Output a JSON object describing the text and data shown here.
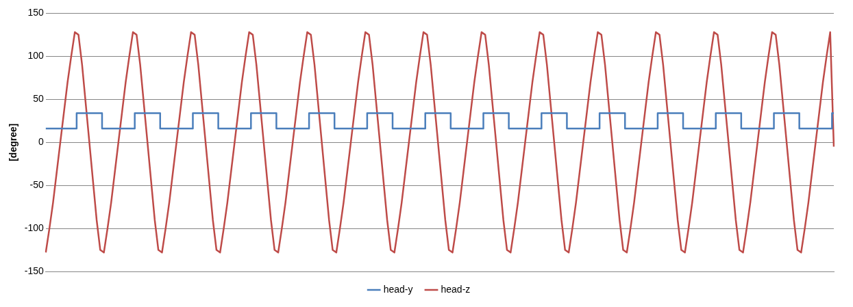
{
  "chart_data": {
    "type": "line",
    "ylabel": "[degree]",
    "ylim": [
      -150,
      150
    ],
    "yticks": [
      -150,
      -100,
      -50,
      0,
      50,
      100,
      150
    ],
    "grid": "y",
    "legend": "bottom",
    "categories": [
      null,
      null,
      null,
      null,
      null,
      null,
      null,
      null,
      null,
      null,
      null,
      null,
      null,
      null,
      null,
      null,
      null,
      null,
      null,
      null,
      null,
      null,
      null,
      null,
      null,
      null,
      null,
      null,
      null,
      null,
      null,
      null,
      null,
      null,
      null,
      null,
      null,
      null,
      null,
      null,
      null,
      null,
      null,
      null,
      null,
      null,
      null,
      null,
      null,
      null,
      null,
      null,
      null,
      null,
      null,
      null,
      null,
      null,
      null,
      null,
      null,
      null,
      null,
      null,
      null,
      null,
      null,
      null,
      null,
      null,
      null,
      null,
      null,
      null,
      null,
      null,
      null,
      null,
      null,
      null,
      null,
      null,
      null,
      null,
      null,
      null,
      null,
      null,
      null,
      null,
      null,
      null,
      null,
      null,
      null,
      null,
      null,
      null,
      null,
      null,
      null,
      null,
      null,
      null,
      null,
      null,
      null,
      null,
      null,
      null,
      null,
      null,
      null,
      null,
      null,
      null,
      null,
      null,
      null,
      null,
      null,
      null,
      null,
      null,
      null,
      null,
      null,
      null,
      null,
      null,
      null,
      null,
      null,
      null,
      null,
      null,
      null,
      null,
      null,
      null,
      null,
      null,
      null,
      null,
      null,
      null,
      null,
      null,
      null,
      null,
      null,
      null,
      null,
      null,
      null,
      null,
      null,
      null,
      null,
      null,
      null,
      null,
      null,
      null,
      null,
      null,
      null,
      null,
      null,
      null,
      null,
      null,
      null,
      null,
      null,
      null,
      null,
      null,
      null,
      null,
      null,
      null,
      null,
      null,
      null,
      null,
      null,
      null,
      null,
      null,
      null,
      null,
      null,
      null,
      null,
      null,
      null,
      null,
      null,
      null,
      null,
      null,
      null,
      null,
      null,
      null,
      null,
      null,
      null,
      null,
      null,
      null,
      null,
      null,
      null,
      null,
      null,
      null
    ],
    "series": [
      {
        "name": "head-y",
        "type": "step",
        "color": "#4a7ebb",
        "values": [
          16,
          16,
          16,
          16,
          16,
          16,
          16,
          16,
          16,
          34,
          34,
          34,
          34,
          34,
          34,
          34,
          16,
          16,
          16,
          16,
          16,
          16,
          16,
          16,
          16,
          34,
          34,
          34,
          34,
          34,
          34,
          34,
          16,
          16,
          16,
          16,
          16,
          16,
          16,
          16,
          16,
          34,
          34,
          34,
          34,
          34,
          34,
          34,
          16,
          16,
          16,
          16,
          16,
          16,
          16,
          16,
          16,
          34,
          34,
          34,
          34,
          34,
          34,
          34,
          16,
          16,
          16,
          16,
          16,
          16,
          16,
          16,
          16,
          34,
          34,
          34,
          34,
          34,
          34,
          34,
          16,
          16,
          16,
          16,
          16,
          16,
          16,
          16,
          16,
          34,
          34,
          34,
          34,
          34,
          34,
          34,
          16,
          16,
          16,
          16,
          16,
          16,
          16,
          16,
          16,
          34,
          34,
          34,
          34,
          34,
          34,
          34,
          16,
          16,
          16,
          16,
          16,
          16,
          16,
          16,
          16,
          34,
          34,
          34,
          34,
          34,
          34,
          34,
          16,
          16,
          16,
          16,
          16,
          16,
          16,
          16,
          16,
          34,
          34,
          34,
          34,
          34,
          34,
          34,
          16,
          16,
          16,
          16,
          16,
          16,
          16,
          16,
          16,
          34,
          34,
          34,
          34,
          34,
          34,
          34,
          16,
          16,
          16,
          16,
          16,
          16,
          16,
          16,
          16,
          34,
          34,
          34,
          34,
          34,
          34,
          34,
          16,
          16,
          16,
          16,
          16,
          16,
          16,
          16,
          16,
          34,
          34,
          34,
          34,
          34,
          34,
          34,
          16,
          16,
          16,
          16,
          16,
          16,
          16,
          16,
          16,
          34,
          34,
          34,
          34,
          34,
          34,
          34,
          16,
          16,
          16,
          16,
          16,
          16,
          16,
          16,
          16,
          34
        ]
      },
      {
        "name": "head-z",
        "type": "line",
        "color": "#be4b48",
        "values": [
          -128,
          -100,
          -70,
          -35,
          0,
          35,
          70,
          100,
          128,
          125,
          90,
          45,
          0,
          -45,
          -90,
          -125,
          -128,
          -100,
          -70,
          -35,
          0,
          35,
          70,
          100,
          128,
          125,
          90,
          45,
          0,
          -45,
          -90,
          -125,
          -128,
          -100,
          -70,
          -35,
          0,
          35,
          70,
          100,
          128,
          125,
          90,
          45,
          0,
          -45,
          -90,
          -125,
          -128,
          -100,
          -70,
          -35,
          0,
          35,
          70,
          100,
          128,
          125,
          90,
          45,
          0,
          -45,
          -90,
          -125,
          -128,
          -100,
          -70,
          -35,
          0,
          35,
          70,
          100,
          128,
          125,
          90,
          45,
          0,
          -45,
          -90,
          -125,
          -128,
          -100,
          -70,
          -35,
          0,
          35,
          70,
          100,
          128,
          125,
          90,
          45,
          0,
          -45,
          -90,
          -125,
          -128,
          -100,
          -70,
          -35,
          0,
          35,
          70,
          100,
          128,
          125,
          90,
          45,
          0,
          -45,
          -90,
          -125,
          -128,
          -100,
          -70,
          -35,
          0,
          35,
          70,
          100,
          128,
          125,
          90,
          45,
          0,
          -45,
          -90,
          -125,
          -128,
          -100,
          -70,
          -35,
          0,
          35,
          70,
          100,
          128,
          125,
          90,
          45,
          0,
          -45,
          -90,
          -125,
          -128,
          -100,
          -70,
          -35,
          0,
          35,
          70,
          100,
          128,
          125,
          90,
          45,
          0,
          -45,
          -90,
          -125,
          -128,
          -100,
          -70,
          -35,
          0,
          35,
          70,
          100,
          128,
          125,
          90,
          45,
          0,
          -45,
          -90,
          -125,
          -128,
          -100,
          -70,
          -35,
          0,
          35,
          70,
          100,
          128,
          125,
          90,
          45,
          0,
          -45,
          -90,
          -125,
          -128,
          -100,
          -70,
          -35,
          0,
          35,
          70,
          100,
          128,
          125,
          90,
          45,
          0,
          -45,
          -90,
          -125,
          -128,
          -100,
          -70,
          -35,
          0,
          35,
          70,
          100,
          128,
          -5
        ]
      }
    ]
  }
}
